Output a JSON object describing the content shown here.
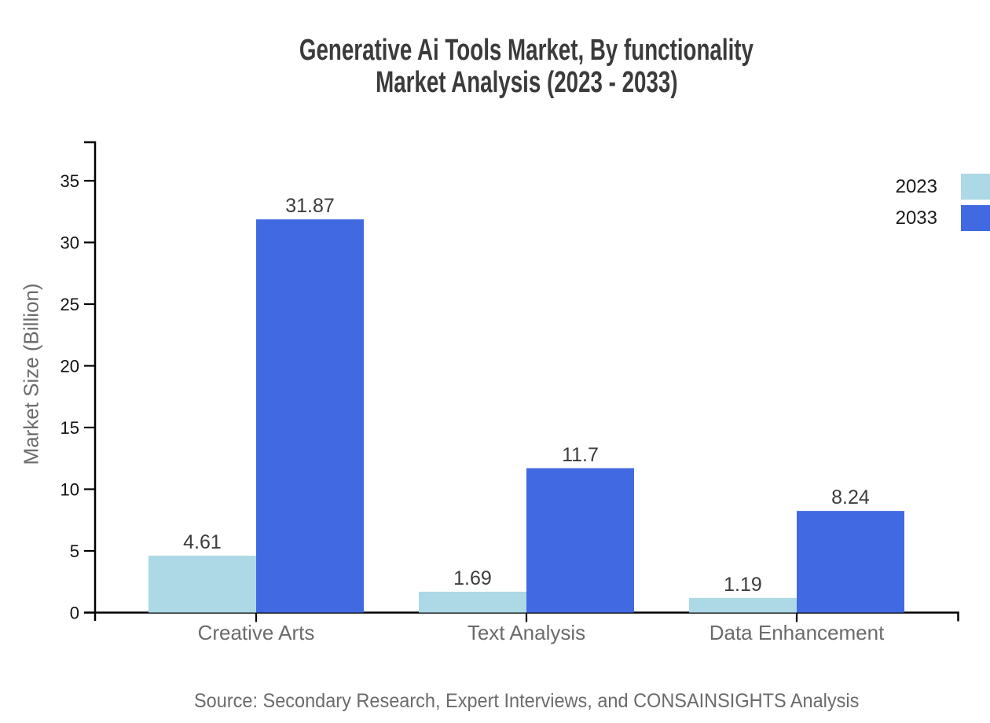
{
  "title": {
    "line1": "Generative Ai Tools Market, By functionality",
    "line2": "Market Analysis (2023 - 2033)"
  },
  "source": "Source: Secondary Research, Expert Interviews, and CONSAINSIGHTS Analysis",
  "colors": {
    "series_2023": "#ADD8E6",
    "series_2033": "#4169E1",
    "axis": "#000000",
    "title_text": "#3b3b3b",
    "muted_text": "#6b6b6b",
    "value_text": "#3d3d3d",
    "tick_text": "#111111"
  },
  "chart_data": {
    "type": "bar",
    "title": "Generative Ai Tools Market, By functionality Market Analysis (2023 - 2033)",
    "categories": [
      "Creative Arts",
      "Text Analysis",
      "Data Enhancement"
    ],
    "series": [
      {
        "name": "2023",
        "color": "#ADD8E6",
        "values": [
          4.61,
          1.69,
          1.19
        ],
        "labels": [
          "4.61",
          "1.69",
          "1.19"
        ]
      },
      {
        "name": "2033",
        "color": "#4169E1",
        "values": [
          31.87,
          11.7,
          8.24
        ],
        "labels": [
          "31.87",
          "11.7",
          "8.24"
        ]
      }
    ],
    "xlabel": "",
    "ylabel": "Market Size (Billion)",
    "ylim": [
      0,
      38.2
    ],
    "yticks": [
      0,
      5,
      10,
      15,
      20,
      25,
      30,
      35
    ],
    "grid": false,
    "legend_position": "top-right"
  }
}
